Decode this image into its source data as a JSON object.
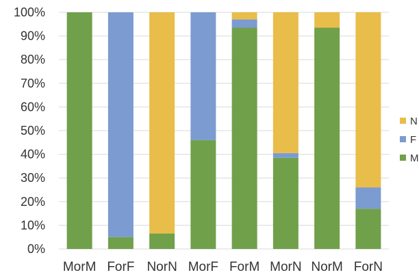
{
  "chart_data": {
    "type": "bar",
    "stacked": true,
    "percent": true,
    "categories": [
      "MorM",
      "ForF",
      "NorN",
      "MorF",
      "ForM",
      "MorN",
      "NorM",
      "ForN"
    ],
    "series": [
      {
        "name": "M",
        "color": "#70a04a",
        "values": [
          100,
          5,
          6.5,
          46,
          93.5,
          38.5,
          93.5,
          17
        ]
      },
      {
        "name": "F",
        "color": "#7b9bd1",
        "values": [
          0,
          95,
          0,
          54,
          3.5,
          2,
          0,
          9
        ]
      },
      {
        "name": "N",
        "color": "#e9bd4a",
        "values": [
          0,
          0,
          93.5,
          0,
          3,
          59.5,
          6.5,
          74
        ]
      }
    ],
    "yticks": [
      "0%",
      "10%",
      "20%",
      "30%",
      "40%",
      "50%",
      "60%",
      "70%",
      "80%",
      "90%",
      "100%"
    ],
    "ylim": [
      0,
      100
    ],
    "grid": true,
    "legend": "right",
    "legend_order": [
      "N",
      "F",
      "M"
    ]
  }
}
